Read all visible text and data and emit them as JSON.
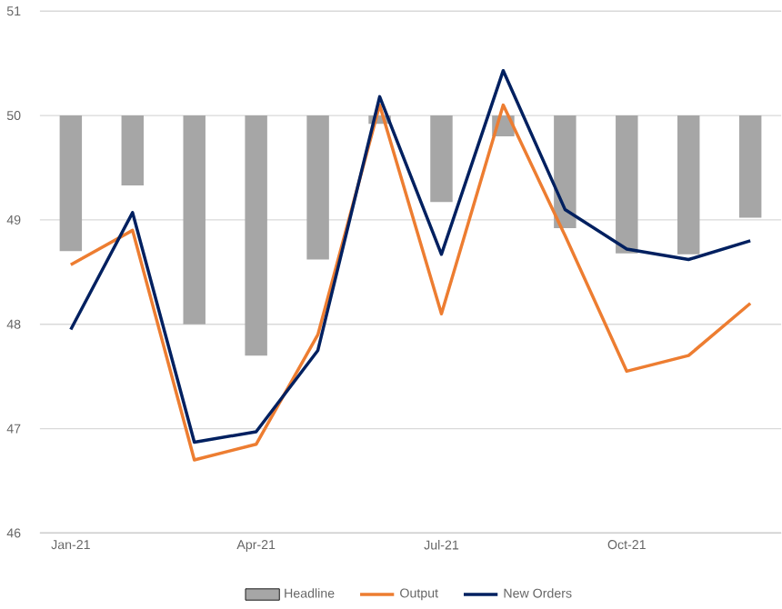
{
  "chart_data": {
    "type": "bar",
    "categories": [
      "Jan-21",
      null,
      null,
      "Apr-21",
      null,
      null,
      "Jul-21",
      null,
      null,
      "Oct-21",
      null,
      null
    ],
    "series": [
      {
        "name": "Headline",
        "color": "#a6a6a6",
        "base": [
          50,
          50,
          50,
          50,
          50,
          50,
          50,
          50,
          50,
          50,
          50,
          50
        ],
        "values": [
          -1.3,
          -0.67,
          -2.0,
          -2.3,
          -1.38,
          -0.08,
          -0.83,
          -0.2,
          -1.08,
          -1.32,
          -1.33,
          -0.98
        ]
      },
      {
        "name": "Output",
        "type": "line",
        "color": "#ed7d31",
        "values": [
          48.57,
          48.9,
          46.7,
          46.85,
          47.9,
          50.1,
          48.1,
          50.1,
          48.85,
          47.55,
          47.7,
          48.2
        ]
      },
      {
        "name": "New Orders",
        "type": "line",
        "color": "#002060",
        "values": [
          47.95,
          49.07,
          46.87,
          46.97,
          47.75,
          50.18,
          48.67,
          50.43,
          49.1,
          48.72,
          48.62,
          48.8
        ]
      }
    ],
    "ylim": [
      46,
      51
    ],
    "yticks": [
      46,
      47,
      48,
      49,
      50,
      51
    ],
    "grid": "y",
    "legend": "bottom"
  }
}
